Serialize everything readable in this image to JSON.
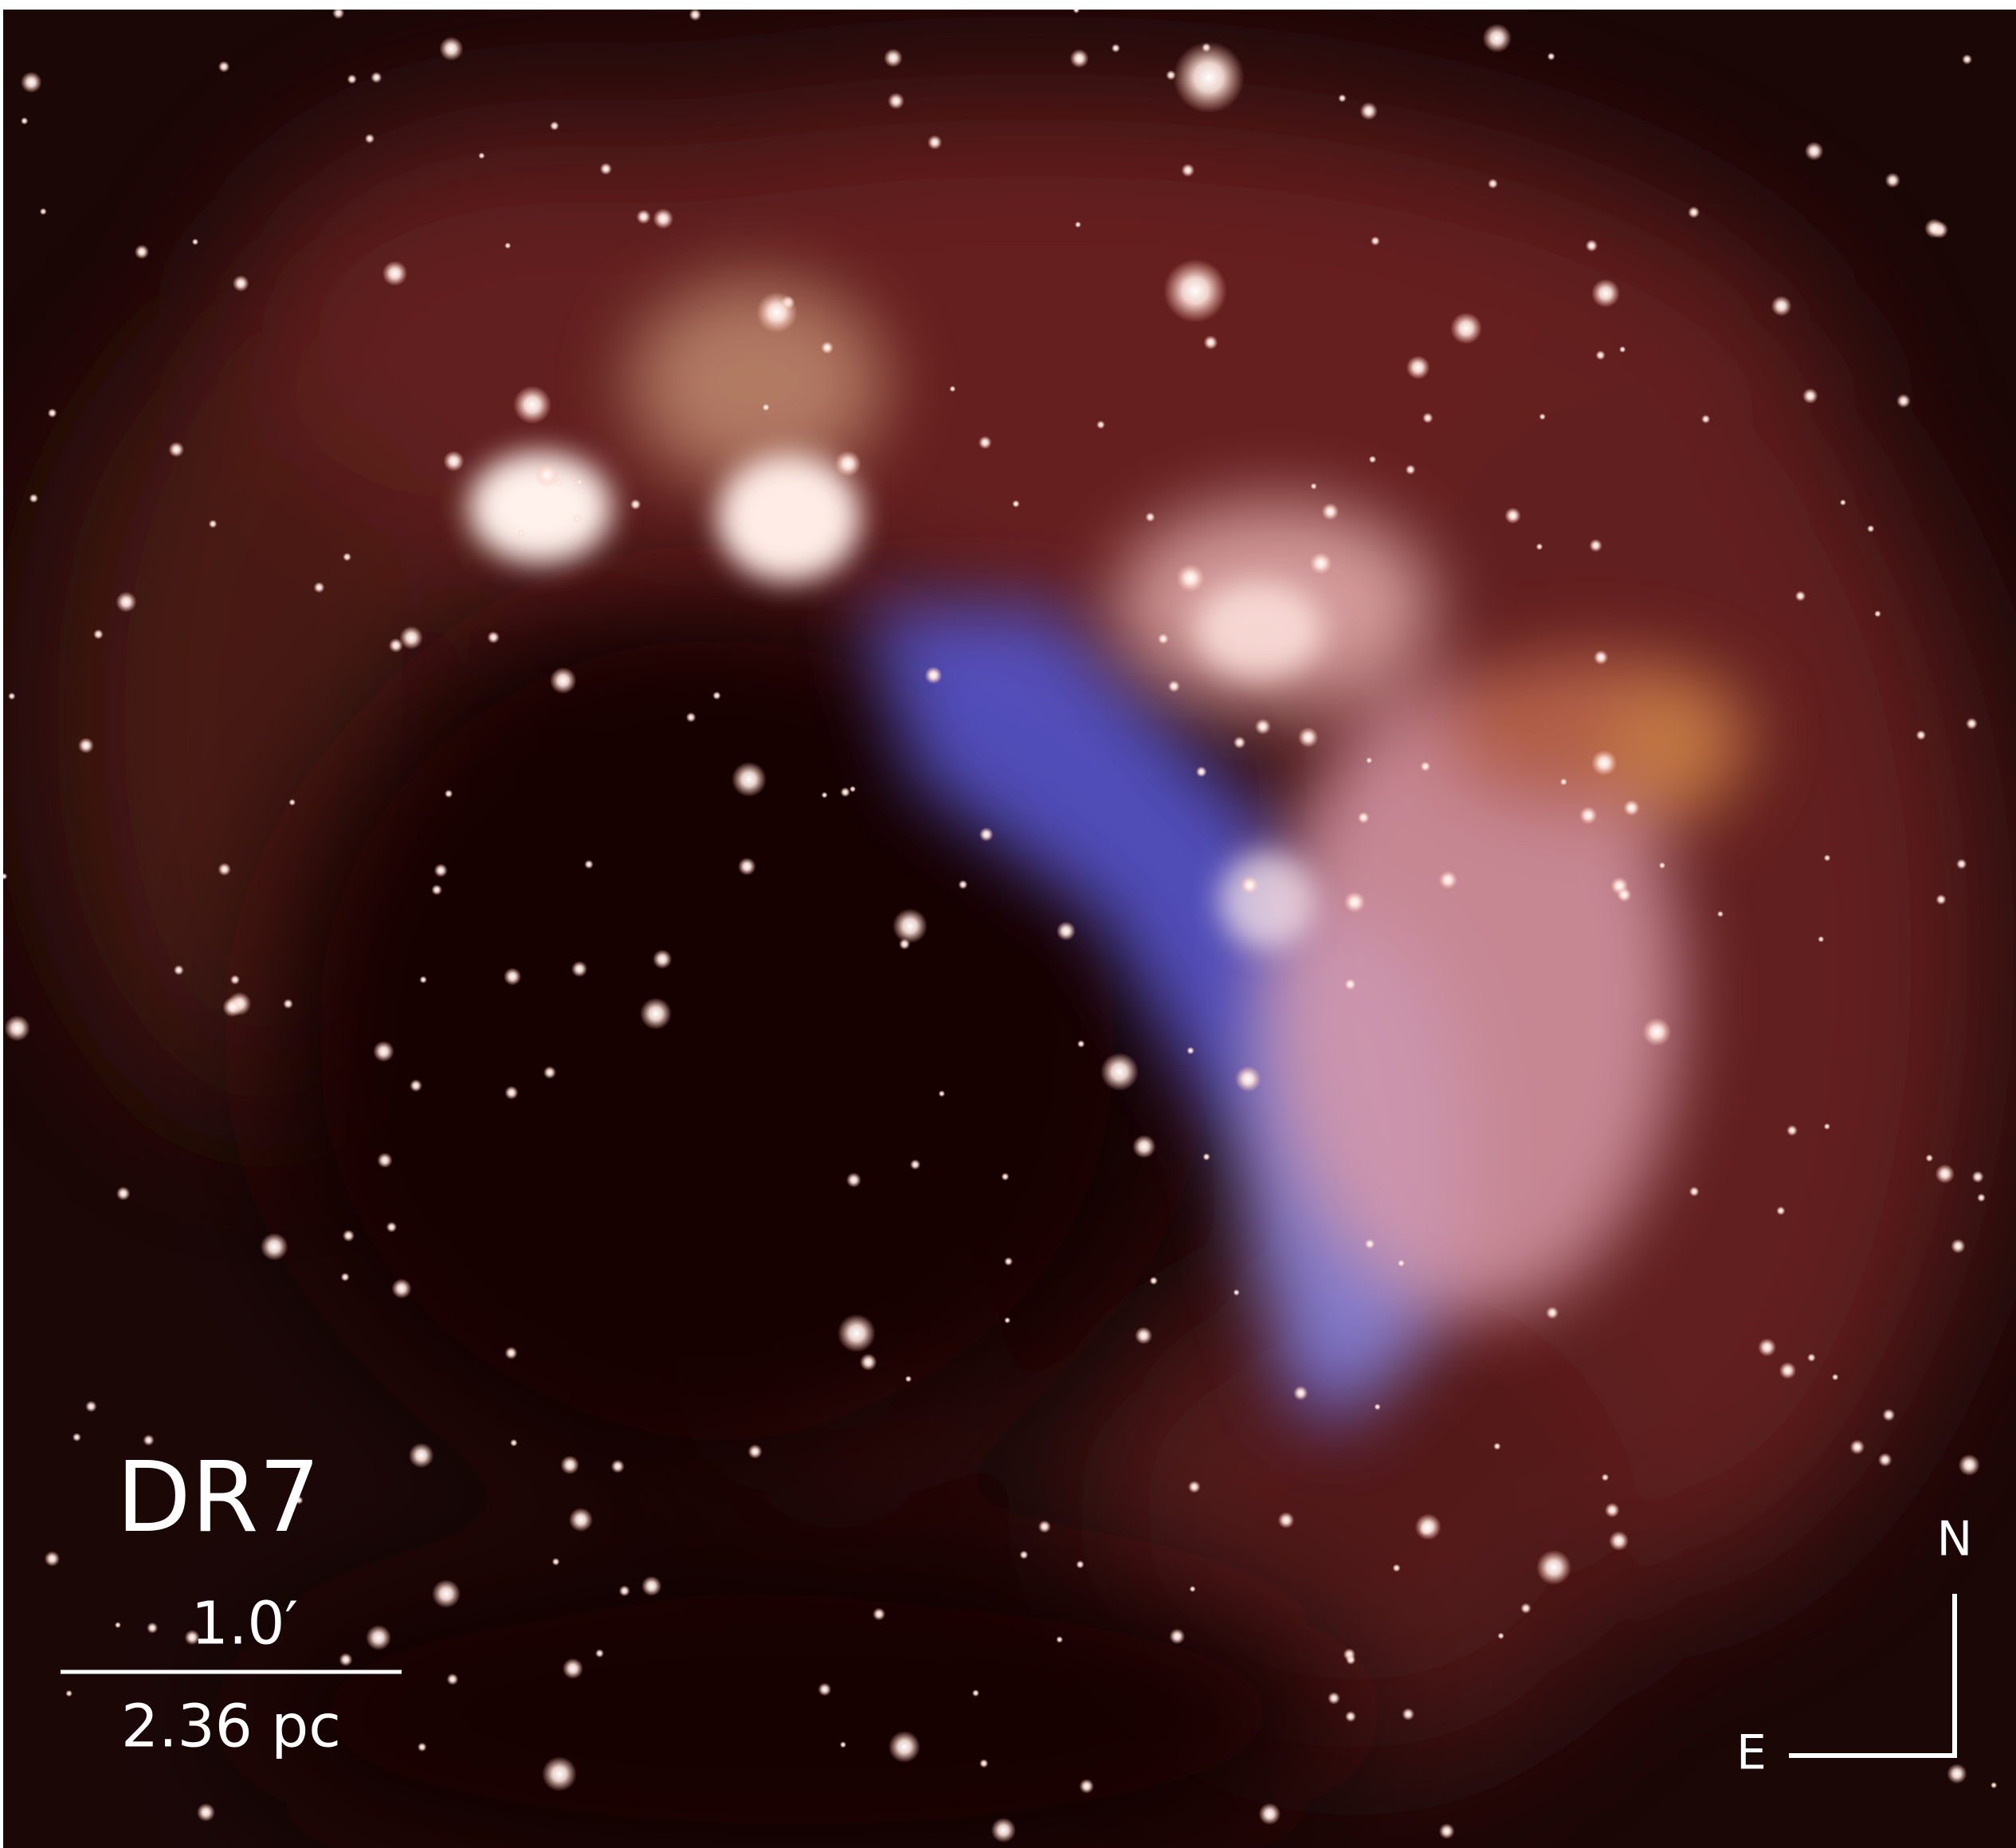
{
  "title": "DR7",
  "scale_bar": {
    "angular": "1.0′",
    "physical": "2.36 pc"
  },
  "compass": {
    "north": "N",
    "east": "E"
  }
}
